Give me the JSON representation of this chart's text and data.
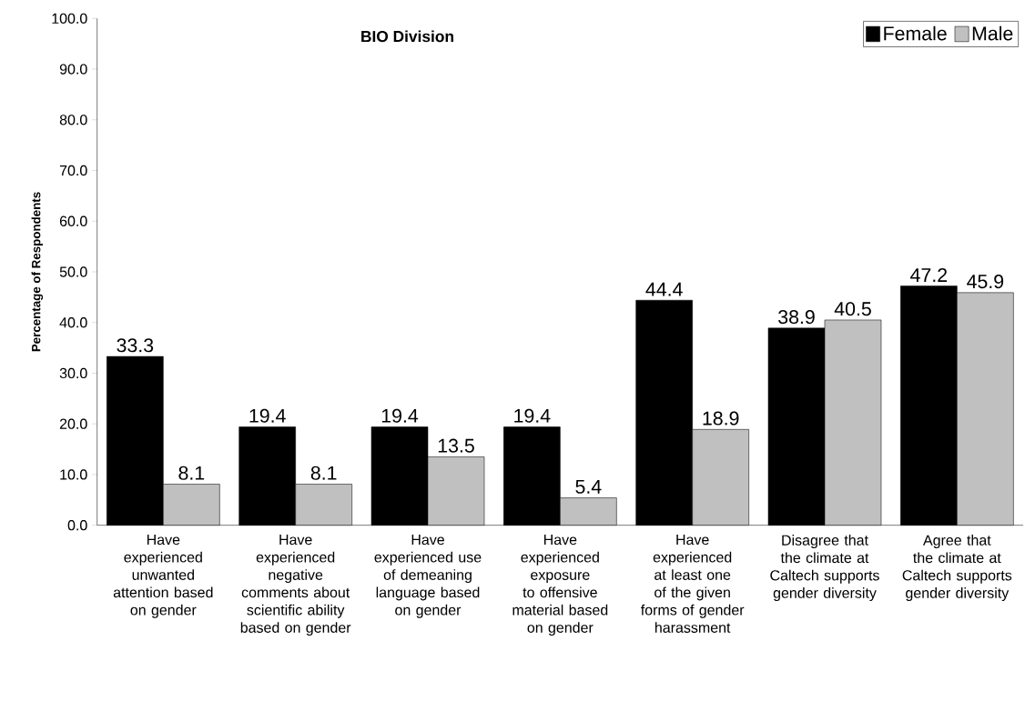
{
  "chart_data": {
    "type": "bar",
    "title": "BIO Division",
    "ylabel": "Percentage of Respondents",
    "categories": [
      "Have experienced unwanted attention based on gender",
      "Have experienced negative comments about scientific ability based on gender",
      "Have experienced use of demeaning language based on gender",
      "Have experienced exposure to offensive material based on gender",
      "Have experienced at least one of the given forms of gender harassment",
      "Disagree that the climate at Caltech supports gender diversity",
      "Agree that the climate at Caltech supports gender diversity"
    ],
    "series": [
      {
        "name": "Female",
        "color": "#000000",
        "values": [
          33.3,
          19.4,
          19.4,
          19.4,
          44.4,
          38.9,
          47.2
        ]
      },
      {
        "name": "Male",
        "color": "#c0c0c0",
        "values": [
          8.1,
          8.1,
          13.5,
          5.4,
          18.9,
          40.5,
          45.9
        ]
      }
    ],
    "ylim": [
      0,
      100
    ],
    "yticks": [
      {
        "value": 0,
        "label": "0.0"
      },
      {
        "value": 10,
        "label": "10.0"
      },
      {
        "value": 20,
        "label": "20.0"
      },
      {
        "value": 30,
        "label": "30.0"
      },
      {
        "value": 40,
        "label": "40.0"
      },
      {
        "value": 50,
        "label": "50.0"
      },
      {
        "value": 60,
        "label": "60.0"
      },
      {
        "value": 70,
        "label": "70.0"
      },
      {
        "value": 80,
        "label": "80.0"
      },
      {
        "value": 90,
        "label": "90.0"
      },
      {
        "value": 100,
        "label": "100.0"
      }
    ],
    "data_labels": true,
    "legend": "top right",
    "grid": false
  }
}
